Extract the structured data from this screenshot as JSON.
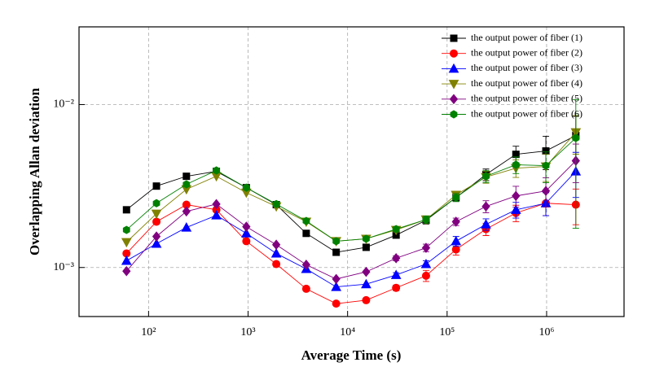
{
  "chart_data": {
    "type": "line",
    "x_label": "Average Time (s)",
    "y_label": "Overlapping Allan deviation",
    "log_x": true,
    "log_y": true,
    "grid": true,
    "legend": "upper right",
    "xlim": [
      20,
      6000000
    ],
    "ylim": [
      0.0005,
      0.03
    ],
    "xticks": [
      {
        "value": 100,
        "label": "10²"
      },
      {
        "value": 1000,
        "label": "10³"
      },
      {
        "value": 10000,
        "label": "10⁴"
      },
      {
        "value": 100000,
        "label": "10⁵"
      },
      {
        "value": 1000000,
        "label": "10⁶"
      }
    ],
    "yticks": [
      {
        "value": 0.001,
        "label": "10⁻³"
      },
      {
        "value": 0.01,
        "label": "10⁻²"
      }
    ],
    "x": [
      60,
      120,
      240,
      480,
      960,
      1920,
      3840,
      7680,
      15360,
      30720,
      61440,
      122880,
      245760,
      491520,
      983040,
      1966080
    ],
    "series": [
      {
        "name": "the output power of fiber (1)",
        "color": "#000000",
        "marker": "square",
        "values": [
          0.00226,
          0.00316,
          0.00363,
          0.00389,
          0.00309,
          0.00243,
          0.00162,
          0.00124,
          0.00133,
          0.00158,
          0.00195,
          0.00269,
          0.00372,
          0.00495,
          0.00519,
          0.00646
        ],
        "errors": [
          0,
          0,
          0,
          0,
          0,
          0,
          0,
          0,
          0,
          5e-05,
          0.0001,
          0.00015,
          0.0003,
          0.0006,
          0.0012,
          0.002
        ]
      },
      {
        "name": "the output power of fiber (2)",
        "color": "#ff0000",
        "marker": "circle",
        "values": [
          0.00122,
          0.00191,
          0.00243,
          0.00226,
          0.00145,
          0.00105,
          0.00074,
          0.0006,
          0.00063,
          0.00075,
          0.00089,
          0.00129,
          0.00172,
          0.00216,
          0.00248,
          0.00243
        ],
        "errors": [
          0,
          0,
          0,
          0,
          0,
          0,
          0,
          0,
          0,
          3e-05,
          7e-05,
          0.0001,
          0.00015,
          0.00025,
          0.0004,
          0.0006
        ]
      },
      {
        "name": "the output power of fiber (3)",
        "color": "#0000ff",
        "marker": "triangle-up",
        "values": [
          0.0011,
          0.0014,
          0.00176,
          0.00209,
          0.00162,
          0.00122,
          0.00098,
          0.00076,
          0.00079,
          0.0009,
          0.00105,
          0.00145,
          0.00184,
          0.00226,
          0.00248,
          0.00389
        ],
        "errors": [
          0,
          0,
          0,
          0,
          0,
          0,
          0,
          0,
          0,
          3e-05,
          5e-05,
          0.0001,
          0.00015,
          0.00025,
          0.0004,
          0.0012
        ]
      },
      {
        "name": "the output power of fiber (4)",
        "color": "#808000",
        "marker": "triangle-down",
        "values": [
          0.00143,
          0.00214,
          0.00302,
          0.00363,
          0.00288,
          0.00237,
          0.00191,
          0.00145,
          0.0015,
          0.0017,
          0.00197,
          0.00279,
          0.00359,
          0.00407,
          0.00417,
          0.00676
        ],
        "errors": [
          0,
          0,
          0,
          0,
          0,
          0,
          0,
          0,
          0,
          5e-05,
          0.0001,
          0.00015,
          0.0003,
          0.0005,
          0.0008,
          0.0018
        ]
      },
      {
        "name": "the output power of fiber (5)",
        "color": "#800080",
        "marker": "diamond",
        "values": [
          0.00095,
          0.00155,
          0.00221,
          0.00245,
          0.00178,
          0.00138,
          0.00104,
          0.00085,
          0.00094,
          0.00114,
          0.00132,
          0.00191,
          0.00237,
          0.00275,
          0.00295,
          0.00452
        ],
        "errors": [
          0,
          0,
          0,
          0,
          0,
          0,
          0,
          0,
          0,
          4e-05,
          7e-05,
          0.0001,
          0.0002,
          0.0004,
          0.0006,
          0.0012
        ]
      },
      {
        "name": "the output power of fiber (6)",
        "color": "#008000",
        "marker": "hexagon",
        "values": [
          0.0017,
          0.00248,
          0.00324,
          0.00394,
          0.00309,
          0.00245,
          0.00193,
          0.00145,
          0.0015,
          0.00172,
          0.00197,
          0.00269,
          0.00363,
          0.00427,
          0.00422,
          0.00624
        ],
        "errors": [
          0,
          0,
          0,
          0,
          0,
          0,
          0,
          0,
          0,
          5e-05,
          0.0001,
          0.00015,
          0.0003,
          0.0005,
          0.0009,
          0.0045
        ]
      }
    ]
  }
}
